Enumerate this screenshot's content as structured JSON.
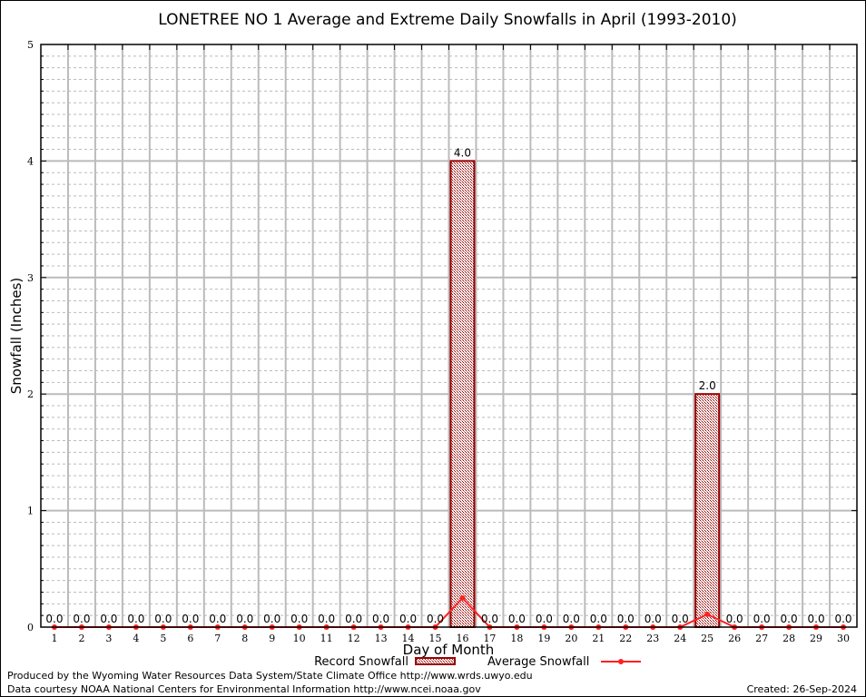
{
  "chart_data": {
    "type": "bar",
    "title": "LONETREE NO 1 Average and Extreme Daily Snowfalls in April (1993-2010)",
    "xlabel": "Day of Month",
    "ylabel": "Snowfall (Inches)",
    "ylim": [
      0,
      5
    ],
    "yticks": [
      "0",
      "1",
      "2",
      "3",
      "4",
      "5"
    ],
    "grid": true,
    "legend_placement": "bottom",
    "categories": [
      1,
      2,
      3,
      4,
      5,
      6,
      7,
      8,
      9,
      10,
      11,
      12,
      13,
      14,
      15,
      16,
      17,
      18,
      19,
      20,
      21,
      22,
      23,
      24,
      25,
      26,
      27,
      28,
      29,
      30
    ],
    "series": [
      {
        "name": "Record Snowfall",
        "type": "bar",
        "color": "#990000",
        "values": [
          0,
          0,
          0,
          0,
          0,
          0,
          0,
          0,
          0,
          0,
          0,
          0,
          0,
          0,
          0,
          4.0,
          0,
          0,
          0,
          0,
          0,
          0,
          0,
          0,
          2.0,
          0,
          0,
          0,
          0,
          0
        ],
        "labels": [
          "0.0",
          "0.0",
          "0.0",
          "0.0",
          "0.0",
          "0.0",
          "0.0",
          "0.0",
          "0.0",
          "0.0",
          "0.0",
          "0.0",
          "0.0",
          "0.0",
          "0.0",
          "4.0",
          "0.0",
          "0.0",
          "0.0",
          "0.0",
          "0.0",
          "0.0",
          "0.0",
          "0.0",
          "2.0",
          "0.0",
          "0.0",
          "0.0",
          "0.0",
          "0.0"
        ]
      },
      {
        "name": "Average Snowfall",
        "type": "line",
        "color": "#ff2020",
        "values": [
          0,
          0,
          0,
          0,
          0,
          0,
          0,
          0,
          0,
          0,
          0,
          0,
          0,
          0,
          0,
          0.25,
          0,
          0,
          0,
          0,
          0,
          0,
          0,
          0,
          0.11,
          0,
          0,
          0,
          0,
          0
        ]
      }
    ]
  },
  "footer": {
    "produced": "Produced by the Wyoming Water Resources Data System/State Climate Office http://www.wrds.uwyo.edu",
    "courtesy": "Data courtesy NOAA National Centers for Environmental Information http://www.ncei.noaa.gov",
    "created": "Created:  26-Sep-2024"
  }
}
